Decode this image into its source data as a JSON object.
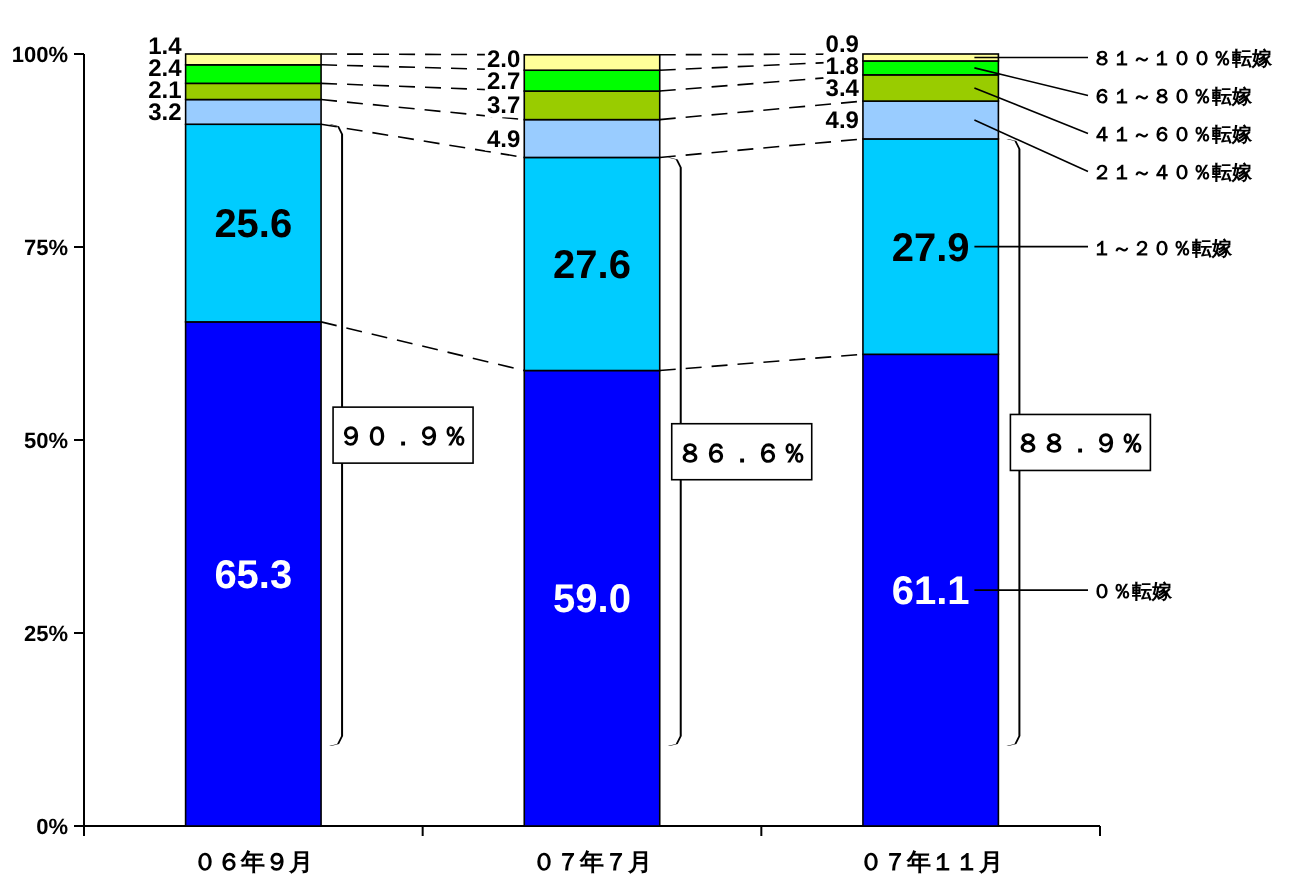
{
  "chart_data": {
    "type": "bar",
    "stacked": true,
    "categories": [
      "０６年９月",
      "０７年７月",
      "０７年１１月"
    ],
    "series": [
      {
        "name": "０％転嫁",
        "color": "#0000ff",
        "values": [
          65.3,
          59.0,
          61.1
        ],
        "value_labels": [
          "65.3",
          "59.0",
          "61.1"
        ]
      },
      {
        "name": "１～２０％転嫁",
        "color": "#00ccff",
        "values": [
          25.6,
          27.6,
          27.9
        ],
        "value_labels": [
          "25.6",
          "27.6",
          "27.9"
        ]
      },
      {
        "name": "２１～４０％転嫁",
        "color": "#99ccff",
        "values": [
          3.2,
          4.9,
          4.9
        ],
        "value_labels": [
          "3.2",
          "4.9",
          "4.9"
        ]
      },
      {
        "name": "４１～６０％転嫁",
        "color": "#99cc00",
        "values": [
          2.1,
          3.7,
          3.4
        ],
        "value_labels": [
          "2.1",
          "3.7",
          "3.4"
        ]
      },
      {
        "name": "６１～８０％転嫁",
        "color": "#00ff00",
        "values": [
          2.4,
          2.7,
          1.8
        ],
        "value_labels": [
          "2.4",
          "2.7",
          "1.8"
        ]
      },
      {
        "name": "８１～１００％転嫁",
        "color": "#ffff99",
        "values": [
          1.4,
          2.0,
          0.9
        ],
        "value_labels": [
          "1.4",
          "2.0",
          "0.9"
        ]
      }
    ],
    "ylim": [
      0,
      100
    ],
    "yticks": [
      {
        "value": 0,
        "label": "0%"
      },
      {
        "value": 25,
        "label": "25%"
      },
      {
        "value": 50,
        "label": "50%"
      },
      {
        "value": 75,
        "label": "75%"
      },
      {
        "value": 100,
        "label": "100%"
      }
    ],
    "legend": false,
    "grid": false,
    "annotations": [
      "９０．９％",
      "８６．６％",
      "８８．９％"
    ]
  }
}
